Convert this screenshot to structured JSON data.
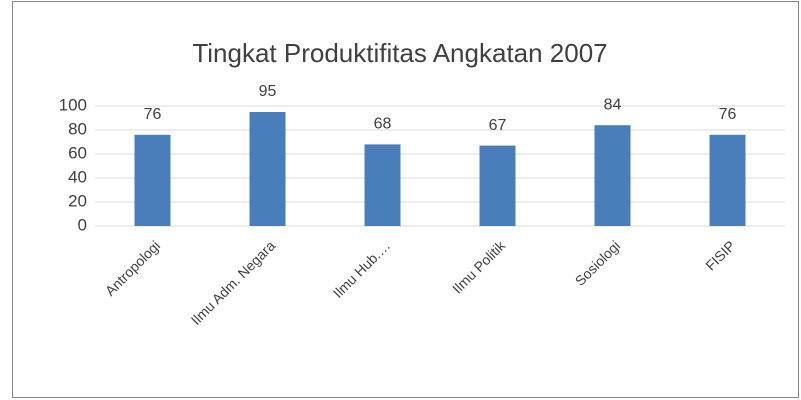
{
  "chart_data": {
    "type": "bar",
    "title": "Tingkat Produktifitas Angkatan 2007",
    "categories": [
      "Antropologi",
      "Ilmu Adm. Negara",
      "Ilmu Hub.…",
      "Ilmu Politik",
      "Sosiologi",
      "FISIP"
    ],
    "values": [
      76,
      95,
      68,
      67,
      84,
      76
    ],
    "color": "#4a7ebb",
    "ylim": [
      0,
      100
    ],
    "yticks": [
      0,
      20,
      40,
      60,
      80,
      100
    ],
    "grid": true
  }
}
